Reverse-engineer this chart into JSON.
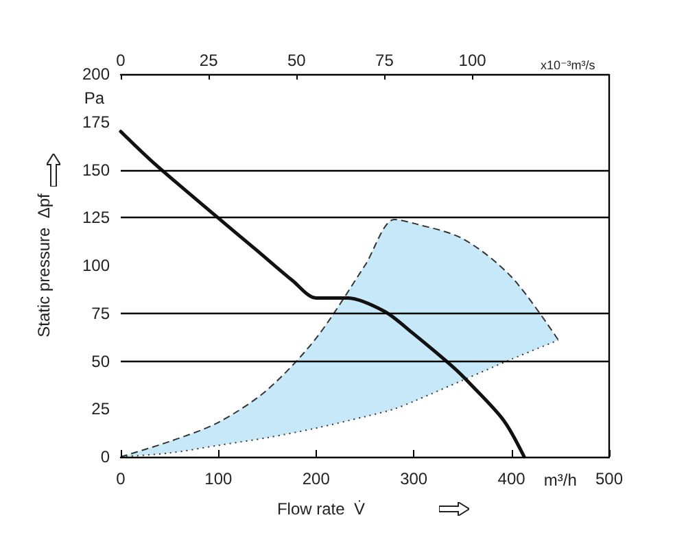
{
  "chart_data": {
    "type": "area",
    "xlabel": "Flow rate  V̇",
    "ylabel": "Static pressure  Δpf",
    "x2label": "x10⁻³m³/s",
    "annotations": [
      "Pa",
      "m³/h"
    ],
    "xlim": [
      0,
      500
    ],
    "xticks": [
      0,
      100,
      200,
      300,
      400,
      500
    ],
    "ylim": [
      0,
      200
    ],
    "yticks": [
      0,
      25,
      50,
      75,
      100,
      125,
      150,
      175,
      200
    ],
    "x2lim": [
      0,
      138.9
    ],
    "x2ticks": [
      0,
      25,
      50,
      75,
      100
    ],
    "grid": false,
    "marker": "none",
    "ref_lines": [
      {
        "axis": "y",
        "value": 50,
        "color": "#000000"
      },
      {
        "axis": "y",
        "value": 75,
        "color": "#000000"
      },
      {
        "axis": "y",
        "value": 125,
        "color": "#000000"
      },
      {
        "axis": "y",
        "value": 150,
        "color": "#000000"
      }
    ],
    "series": [
      {
        "type": "area",
        "color": "#c6e8f8",
        "line_style": "dashed",
        "x": [
          0,
          50,
          100,
          150,
          200,
          250,
          280,
          300,
          350,
          400,
          448
        ],
        "values": [
          0,
          8,
          18,
          35,
          62,
          100,
          124,
          122,
          114,
          94,
          61
        ]
      },
      {
        "type": "area",
        "color": "#ffffff",
        "line_style": "dotted",
        "x": [
          0,
          50,
          100,
          150,
          200,
          250,
          280,
          300,
          350,
          400,
          448
        ],
        "values": [
          0,
          2,
          6,
          10,
          15,
          21,
          25,
          29,
          40,
          51,
          61
        ]
      },
      {
        "type": "line",
        "color": "#111111",
        "line_style": "solid",
        "x": [
          0,
          35,
          97,
          139,
          176,
          200,
          232,
          270,
          298,
          340,
          358,
          392,
          413
        ],
        "values": [
          170,
          153,
          126,
          108,
          92,
          83,
          83,
          76,
          65,
          47,
          38,
          19,
          0
        ]
      }
    ]
  }
}
